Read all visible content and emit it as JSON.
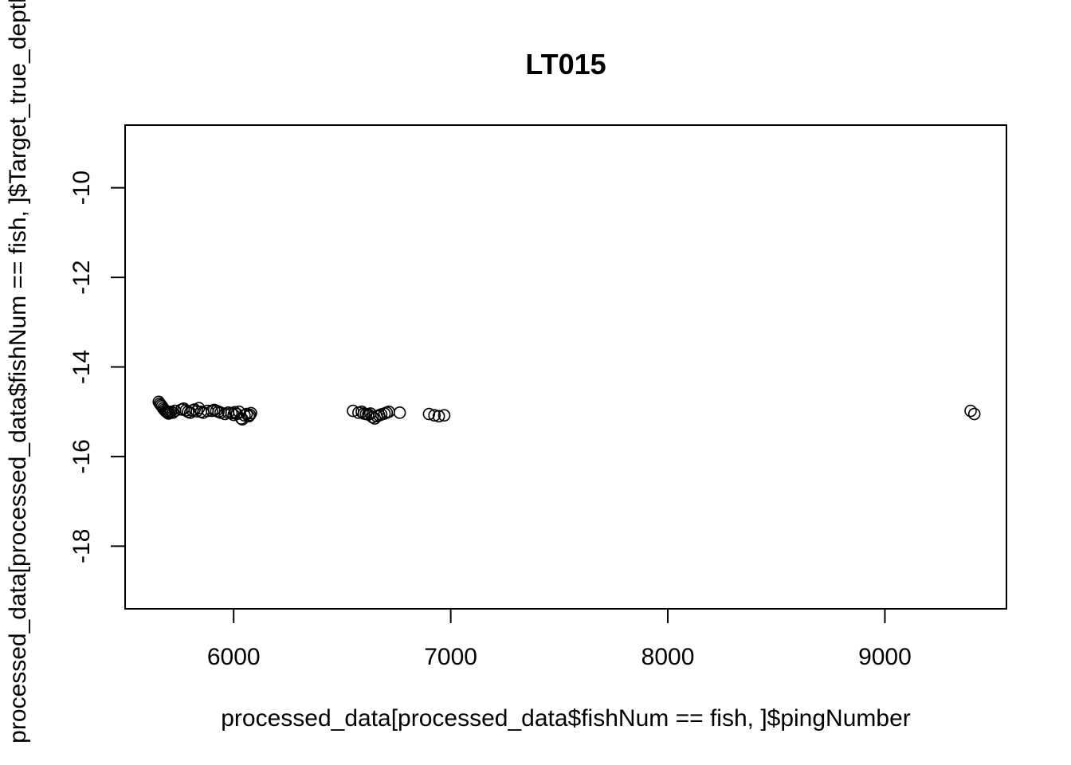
{
  "chart_data": {
    "type": "scatter",
    "title": "LT015",
    "xlabel": "processed_data[processed_data$fishNum == fish, ]$pingNumber",
    "ylabel": "processed_data[processed_data$fishNum == fish, ]$Target_true_depth",
    "xlim": [
      5500,
      9560
    ],
    "ylim": [
      -19.4,
      -8.6
    ],
    "xticks": [
      6000,
      7000,
      8000,
      9000
    ],
    "yticks": [
      -10,
      -12,
      -14,
      -16,
      -18
    ],
    "xtick_labels": [
      "6000",
      "7000",
      "8000",
      "9000"
    ],
    "ytick_labels": [
      "-10",
      "-12",
      "-14",
      "-16",
      "-18"
    ],
    "grid": false,
    "legend": "none",
    "marker": "open-circle",
    "color": "#000000",
    "series": [
      {
        "x": [
          5655,
          5660,
          5665,
          5670,
          5675,
          5680,
          5685,
          5690,
          5695,
          5700,
          5705,
          5712,
          5720,
          5730,
          5760,
          5770,
          5780,
          5790,
          5800,
          5810,
          5820,
          5830,
          5840,
          5850,
          5860,
          5880,
          5900,
          5910,
          5920,
          5930,
          5940,
          5960,
          5975,
          5990,
          6000,
          6005,
          6015,
          6025,
          6035,
          6040,
          6050,
          6060,
          6070,
          6075,
          6080,
          6550,
          6575,
          6590,
          6600,
          6610,
          6620,
          6630,
          6640,
          6650,
          6660,
          6670,
          6680,
          6695,
          6705,
          6715,
          6765,
          6900,
          6925,
          6945,
          6970,
          9395,
          9412
        ],
        "y": [
          -14.78,
          -14.82,
          -14.85,
          -14.88,
          -14.92,
          -14.95,
          -14.98,
          -15.0,
          -15.02,
          -15.04,
          -15.02,
          -15.0,
          -15.02,
          -14.98,
          -14.95,
          -14.93,
          -14.97,
          -15.0,
          -15.02,
          -14.97,
          -14.95,
          -14.99,
          -14.92,
          -15.0,
          -15.02,
          -14.98,
          -14.98,
          -14.96,
          -14.98,
          -15.0,
          -15.02,
          -15.05,
          -15.02,
          -15.03,
          -15.07,
          -15.01,
          -15.05,
          -15.0,
          -15.15,
          -15.17,
          -15.08,
          -15.05,
          -15.1,
          -15.07,
          -15.03,
          -14.98,
          -15.02,
          -15.0,
          -15.04,
          -15.05,
          -15.06,
          -15.04,
          -15.12,
          -15.15,
          -15.1,
          -15.08,
          -15.06,
          -15.04,
          -15.02,
          -15.0,
          -15.02,
          -15.05,
          -15.08,
          -15.1,
          -15.08,
          -14.98,
          -15.05
        ]
      }
    ]
  }
}
